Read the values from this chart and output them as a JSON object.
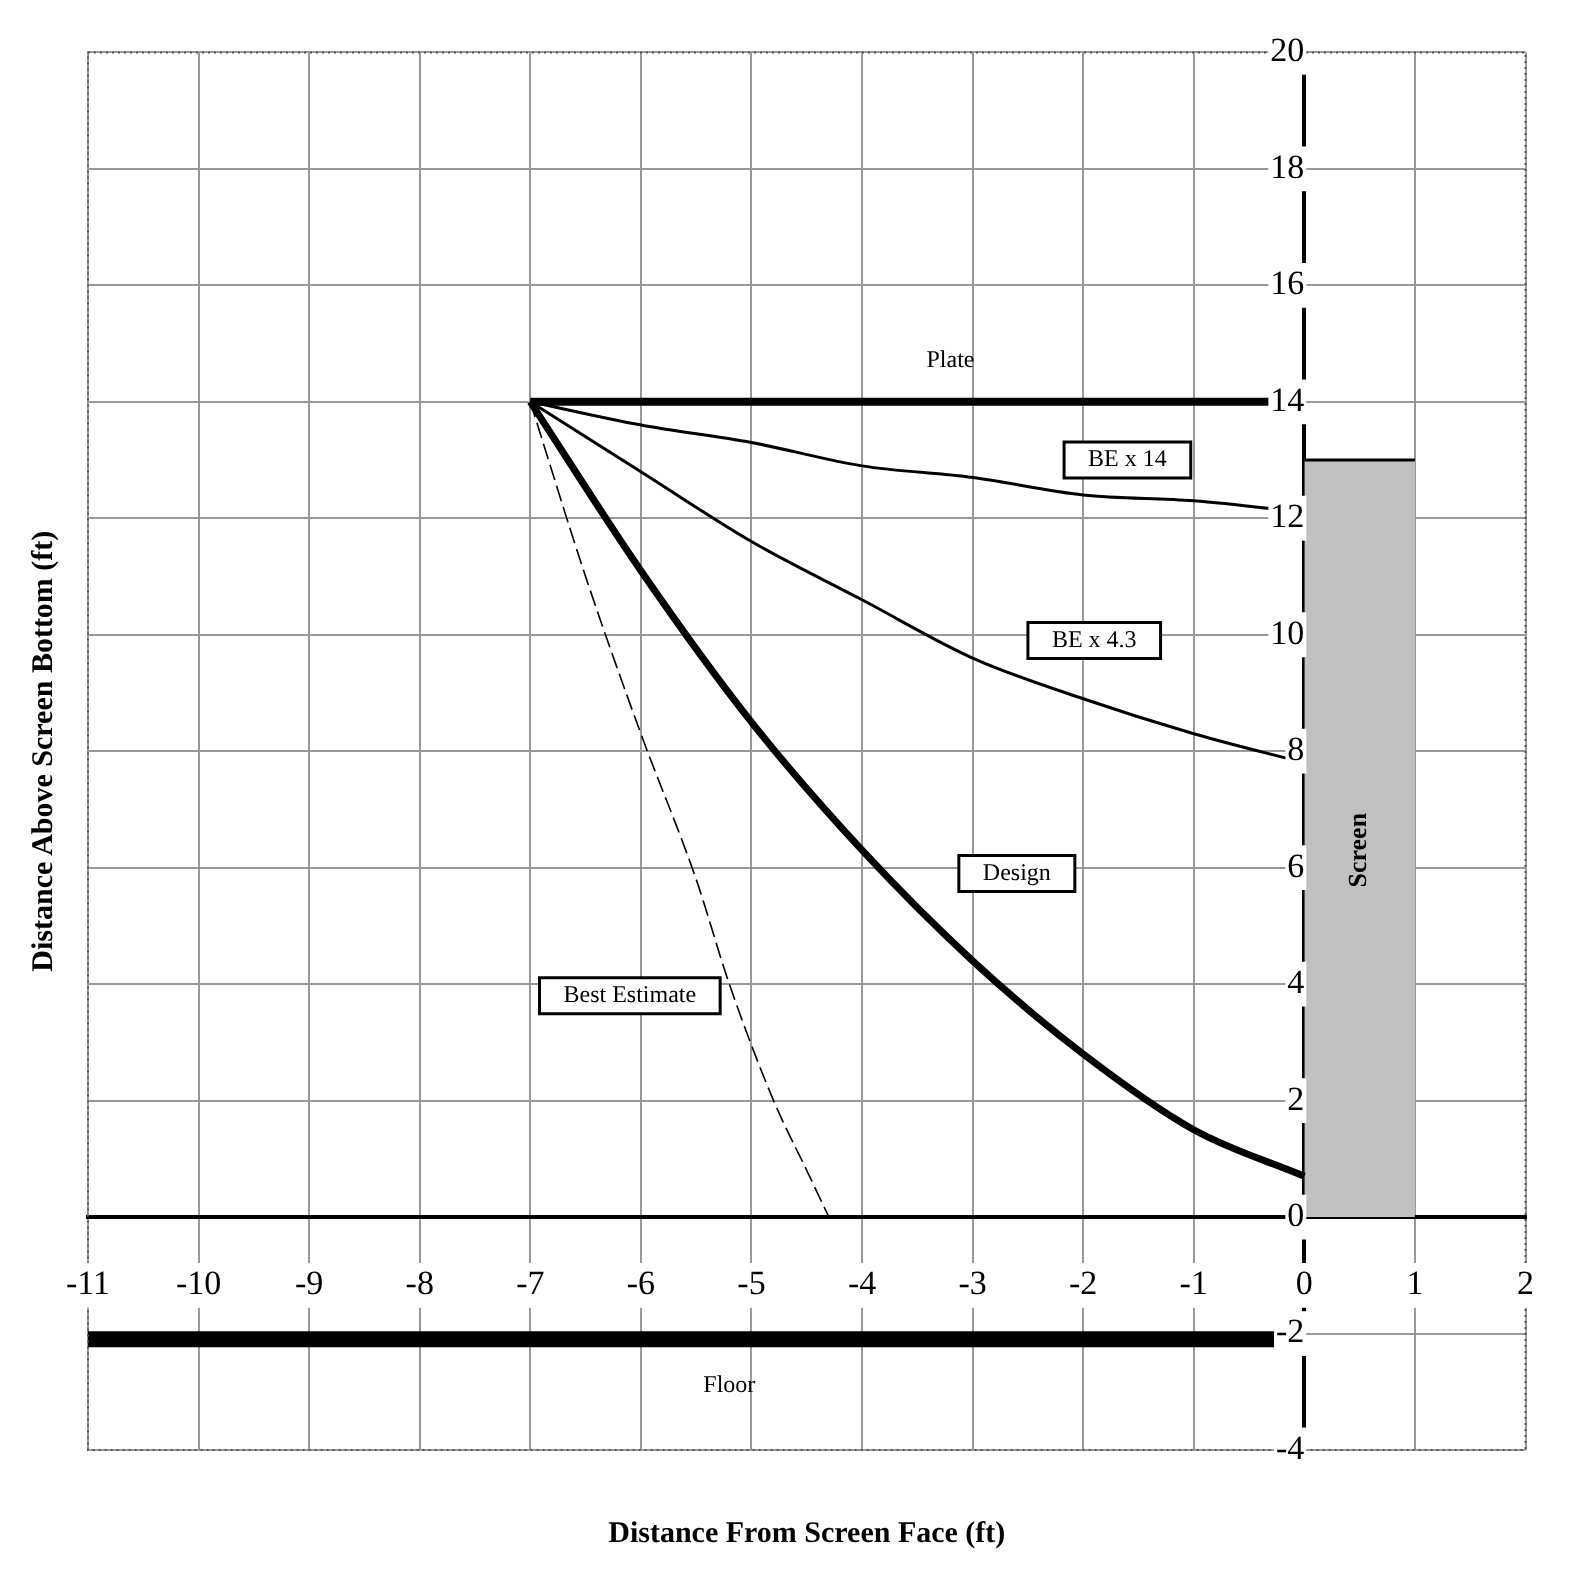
{
  "chart_data": {
    "type": "line",
    "xlabel": "Distance From Screen Face (ft)",
    "ylabel": "Distance Above Screen Bottom (ft)",
    "xlim": [
      -11,
      2
    ],
    "ylim": [
      -4,
      20
    ],
    "xticks": [
      -11,
      -10,
      -9,
      -8,
      -7,
      -6,
      -5,
      -4,
      -3,
      -2,
      -1,
      0,
      1,
      2
    ],
    "yticks": [
      -4,
      -2,
      0,
      2,
      4,
      6,
      8,
      10,
      12,
      14,
      16,
      18,
      20
    ],
    "grid": true,
    "legend": false,
    "marker": "none",
    "series": [
      {
        "name": "Plate",
        "color": "#000000",
        "x": [
          -7,
          0
        ],
        "values": [
          14,
          14
        ]
      },
      {
        "name": "BE x 14",
        "color": "#000000",
        "x": [
          -7,
          -6,
          -5,
          -4,
          -3,
          -2,
          -1,
          0
        ],
        "values": [
          14,
          13.6,
          13.3,
          12.9,
          12.7,
          12.4,
          12.3,
          12.1
        ]
      },
      {
        "name": "BE x 4.3",
        "color": "#000000",
        "x": [
          -7,
          -6,
          -5,
          -4,
          -3,
          -2,
          -1,
          0
        ],
        "values": [
          14,
          12.8,
          11.6,
          10.6,
          9.6,
          8.9,
          8.3,
          7.8
        ]
      },
      {
        "name": "Design",
        "color": "#000000",
        "x": [
          -7,
          -6,
          -5,
          -4,
          -3,
          -2,
          -1,
          0
        ],
        "values": [
          14,
          11.1,
          8.5,
          6.3,
          4.4,
          2.8,
          1.5,
          0.7
        ]
      },
      {
        "name": "Best Estimate",
        "color": "#000000",
        "line_style": "dashed",
        "x": [
          -7,
          -6.5,
          -6,
          -5.5,
          -5.2,
          -4.8,
          -4.5,
          -4.3
        ],
        "values": [
          14,
          11,
          8.3,
          5.8,
          4,
          2,
          0.8,
          0
        ]
      },
      {
        "name": "Floor",
        "color": "#000000",
        "x": [
          -11,
          0
        ],
        "values": [
          -2.1,
          -2.1
        ]
      },
      {
        "name": "Screen",
        "type": "area",
        "color": "#c0c0c0",
        "x": [
          0,
          1
        ],
        "values": [
          13,
          13
        ]
      }
    ]
  }
}
